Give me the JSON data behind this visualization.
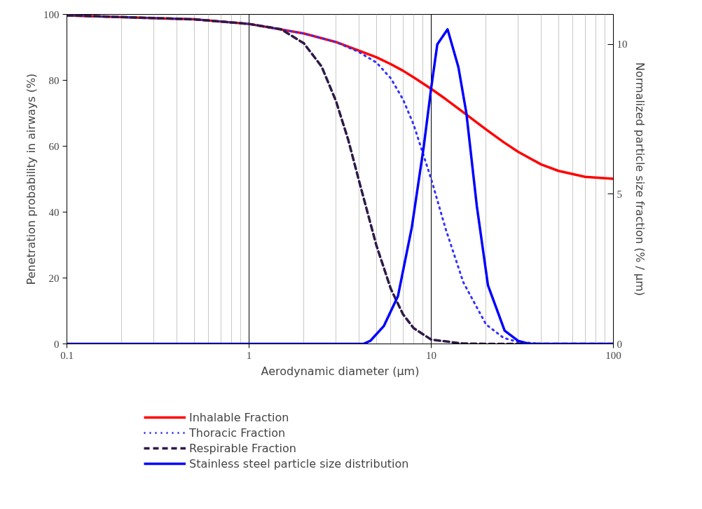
{
  "chart_data": {
    "type": "line",
    "xlabel": "Aerodynamic diameter (µm)",
    "ylabel": "Penetration probability in airways (%)",
    "y2label": "Normalized particle size fraction (% / µm)",
    "log": "x",
    "xlim": [
      0.1,
      100
    ],
    "xticks": [
      0.1,
      1,
      10,
      100
    ],
    "ylim": [
      0,
      100
    ],
    "yticks": [
      0,
      20,
      40,
      60,
      80,
      100
    ],
    "y2lim": [
      0,
      11
    ],
    "y2ticks": [
      0,
      5,
      10
    ],
    "grid": "x",
    "legend": "bottom",
    "marker": "none",
    "series": [
      {
        "name": "Inhalable Fraction",
        "color": "#ff0000",
        "line_style": "solid",
        "x": [
          0.1,
          0.5,
          1,
          2,
          3,
          4,
          5,
          6,
          7,
          8,
          10,
          12,
          15,
          20,
          25,
          30,
          40,
          50,
          70,
          100
        ],
        "values": [
          99.7,
          98.5,
          97.1,
          94.2,
          91.6,
          89.0,
          87.0,
          84.9,
          82.9,
          80.9,
          77.4,
          74.3,
          70.3,
          65.1,
          61.2,
          58.3,
          54.5,
          52.5,
          50.7,
          50.1
        ]
      },
      {
        "name": "Thoracic Fraction",
        "color": "#3333ff",
        "line_style": "dotted",
        "x": [
          0.1,
          0.5,
          1,
          2,
          3,
          4,
          5,
          6,
          7,
          8,
          10,
          12,
          15,
          20,
          25,
          30,
          40,
          100
        ],
        "values": [
          99.7,
          98.5,
          97.1,
          94.2,
          91.6,
          88.6,
          85.4,
          80.6,
          74.2,
          66.6,
          50.0,
          34.9,
          18.7,
          5.9,
          1.8,
          0.6,
          0,
          0
        ]
      },
      {
        "name": "Respirable Fraction",
        "color": "#2e1a47",
        "line_style": "dashed",
        "x": [
          0.1,
          0.5,
          1,
          1.5,
          2,
          2.5,
          3,
          3.5,
          4,
          5,
          6,
          7,
          8,
          10,
          15,
          20,
          100
        ],
        "values": [
          99.7,
          98.5,
          97.1,
          95.5,
          91.2,
          84.2,
          73.7,
          62.0,
          49.8,
          29.9,
          16.7,
          9.0,
          4.8,
          1.3,
          0.1,
          0,
          0
        ]
      },
      {
        "name": "Stainless steel particle size distribution",
        "color": "#0000ff",
        "line_style": "solid",
        "axis": "y2",
        "x": [
          0.1,
          4.24,
          4.63,
          5.5,
          6.57,
          7.83,
          9.08,
          10,
          10.8,
          12.3,
          14.1,
          15.6,
          17.8,
          20.5,
          25.3,
          30,
          34.6,
          100
        ],
        "values": [
          0,
          0,
          0.1,
          0.6,
          1.6,
          3.9,
          6.55,
          8.55,
          10.0,
          10.5,
          9.24,
          7.7,
          4.6,
          1.95,
          0.44,
          0.1,
          0,
          0
        ]
      }
    ]
  }
}
